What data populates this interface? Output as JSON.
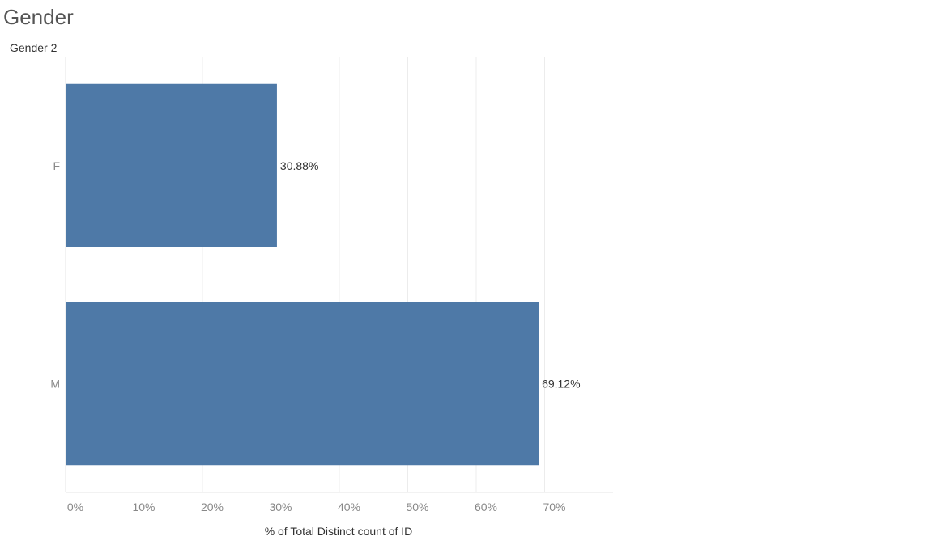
{
  "chart_data": {
    "type": "bar",
    "orientation": "horizontal",
    "title": "Gender",
    "dimension_header": "Gender 2",
    "categories": [
      "F",
      "M"
    ],
    "values": [
      30.88,
      69.12
    ],
    "data_labels": [
      "30.88%",
      "69.12%"
    ],
    "xlabel": "% of Total Distinct count of ID",
    "ylabel": "",
    "xlim": [
      0,
      80
    ],
    "xticks": [
      0,
      10,
      20,
      30,
      40,
      50,
      60,
      70
    ],
    "xtick_labels": [
      "0%",
      "10%",
      "20%",
      "30%",
      "40%",
      "50%",
      "60%",
      "70%"
    ],
    "grid": true,
    "bar_color": "#4e79a7",
    "gridline_color": "#ececec"
  }
}
